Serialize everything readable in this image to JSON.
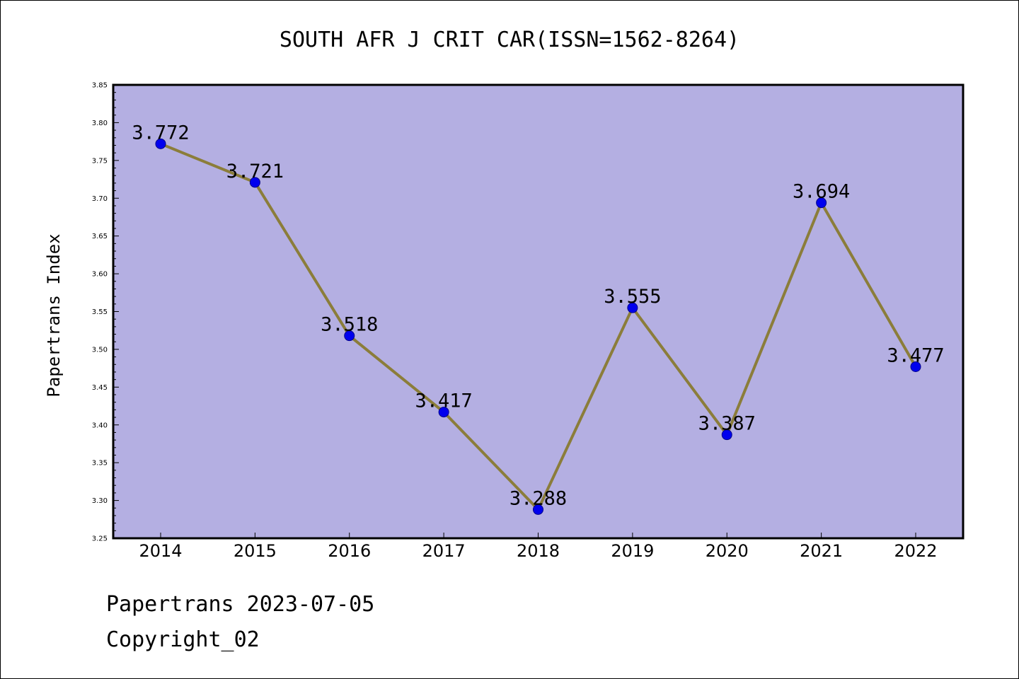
{
  "chart_data": {
    "type": "line",
    "title": "SOUTH AFR J CRIT CAR(ISSN=1562-8264)",
    "xlabel": "",
    "ylabel": "Papertrans Index",
    "categories": [
      "2014",
      "2015",
      "2016",
      "2017",
      "2018",
      "2019",
      "2020",
      "2021",
      "2022"
    ],
    "series": [
      {
        "values": [
          3.772,
          3.721,
          3.518,
          3.417,
          3.288,
          3.555,
          3.387,
          3.694,
          3.477
        ],
        "labels": [
          "3.772",
          "3.721",
          "3.518",
          "3.417",
          "3.288",
          "3.555",
          "3.387",
          "3.694",
          "3.477"
        ]
      }
    ],
    "ylim": [
      3.25,
      3.85
    ],
    "yticks": [
      "3.25",
      "3.30",
      "3.35",
      "3.40",
      "3.45",
      "3.50",
      "3.55",
      "3.60",
      "3.65",
      "3.70",
      "3.75",
      "3.80",
      "3.85"
    ],
    "grid": false,
    "colors": {
      "plot_background": "#b4afe2",
      "line": "#8b7d3a",
      "marker": "#0000ee",
      "marker_edge": "#00008b"
    }
  },
  "footer": {
    "line1": "Papertrans 2023-07-05",
    "line2": "Copyright_02"
  }
}
